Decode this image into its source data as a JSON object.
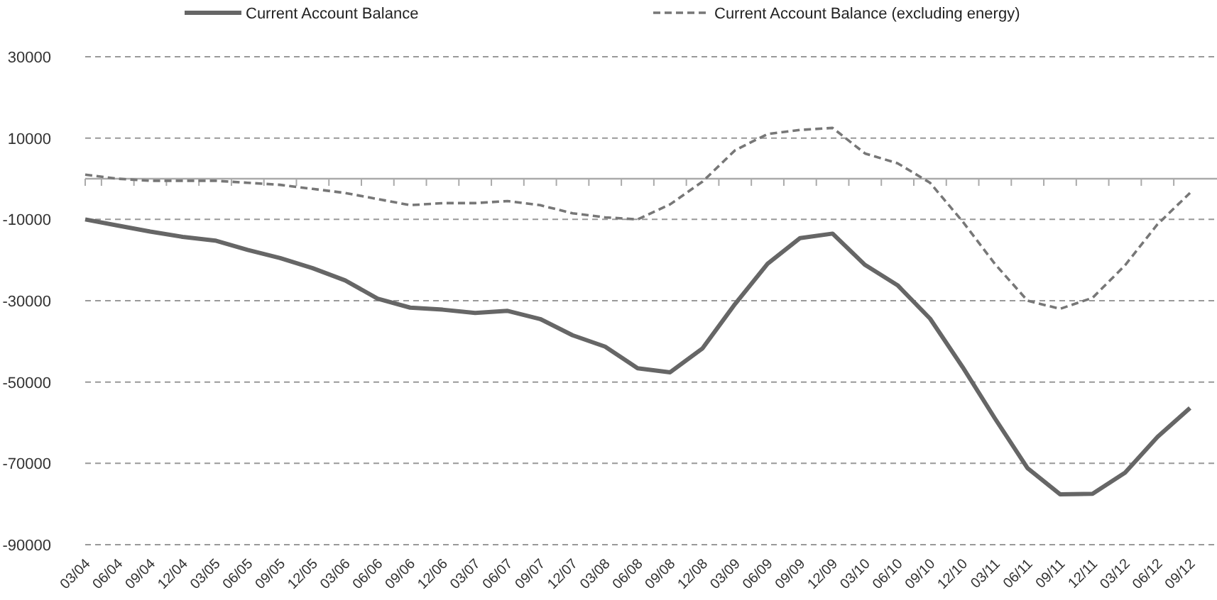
{
  "chart_data": {
    "type": "line",
    "categories": [
      "03/04",
      "06/04",
      "09/04",
      "12/04",
      "03/05",
      "06/05",
      "09/05",
      "12/05",
      "03/06",
      "06/06",
      "09/06",
      "12/06",
      "03/07",
      "06/07",
      "09/07",
      "12/07",
      "03/08",
      "06/08",
      "09/08",
      "12/08",
      "03/09",
      "06/09",
      "09/09",
      "12/09",
      "03/10",
      "06/10",
      "09/10",
      "12/10",
      "03/11",
      "06/11",
      "09/11",
      "12/11",
      "03/12",
      "06/12",
      "09/12"
    ],
    "series": [
      {
        "name": "Current Account Balance",
        "color": "#666666",
        "line_style": "solid",
        "values": [
          -10000,
          -11500,
          -13000,
          -14300,
          -15200,
          -17500,
          -19500,
          -22000,
          -25000,
          -29500,
          -31700,
          -32200,
          -33000,
          -32500,
          -34500,
          -38500,
          -41300,
          -46600,
          -47600,
          -41700,
          -30800,
          -20900,
          -14600,
          -13500,
          -21200,
          -26200,
          -34400,
          -46300,
          -59000,
          -71200,
          -77600,
          -77500,
          -72300,
          -63500,
          -56400
        ]
      },
      {
        "name": "Current Account Balance (excluding energy)",
        "color": "#777777",
        "line_style": "dashed",
        "values": [
          1000,
          0,
          -500,
          -500,
          -500,
          -1000,
          -1500,
          -2500,
          -3500,
          -5000,
          -6500,
          -6000,
          -6000,
          -5500,
          -6500,
          -8500,
          -9500,
          -10000,
          -6300,
          -700,
          7000,
          11000,
          12000,
          12500,
          6200,
          3800,
          -1000,
          -10500,
          -21000,
          -30000,
          -32000,
          -29300,
          -21300,
          -11200,
          -3500
        ]
      }
    ],
    "ylim": [
      -90000,
      30000
    ],
    "yticks": [
      30000,
      10000,
      -10000,
      -30000,
      -50000,
      -70000,
      -90000
    ],
    "grid": "y",
    "legend": "top",
    "marker": "none"
  }
}
